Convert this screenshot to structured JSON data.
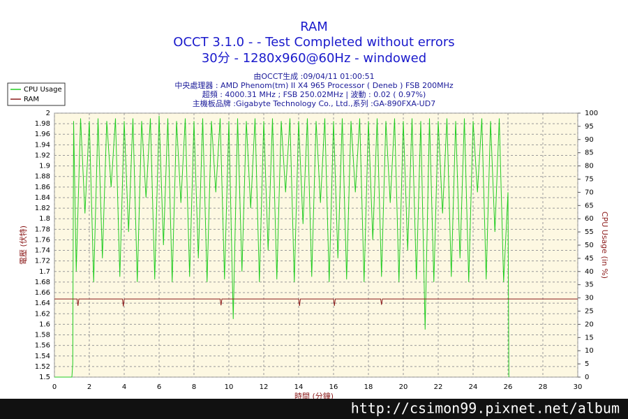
{
  "chart_data": {
    "type": "line",
    "title_lines": [
      "RAM",
      "OCCT 3.1.0 -  - Test Completed without errors",
      "30分 - 1280x960@60Hz - windowed"
    ],
    "info_lines": [
      "由OCCT生成 :09/04/11 01:00:51",
      "中央處理器 : AMD Phenom(tm) II X4 965 Processor ( Deneb ) FSB 200MHz",
      "超頻 : 4000.31 MHz ; FSB 250.02MHz | 波動 : 0.02 ( 0.97%)",
      "主機板品牌 :Gigabyte Technology Co., Ltd.,系列 :GA-890FXA-UD7"
    ],
    "x_label": "時間 (分鐘)",
    "y_label": "電壓 (伏特)",
    "y2_label": "CPU Usage (in %)",
    "watermark": "http://csimon99.pixnet.net/album",
    "xlim": [
      0,
      30
    ],
    "xticks": [
      0,
      2,
      4,
      6,
      8,
      10,
      12,
      14,
      16,
      18,
      20,
      22,
      24,
      26,
      28,
      30
    ],
    "ylim": [
      1.5,
      2
    ],
    "yticks": [
      1.5,
      1.52,
      1.54,
      1.56,
      1.58,
      1.6,
      1.62,
      1.64,
      1.66,
      1.68,
      1.7,
      1.72,
      1.74,
      1.76,
      1.78,
      1.8,
      1.82,
      1.84,
      1.86,
      1.88,
      1.9,
      1.92,
      1.94,
      1.96,
      1.98,
      2
    ],
    "y2lim": [
      0,
      100
    ],
    "y2ticks": [
      0,
      5,
      10,
      15,
      20,
      25,
      30,
      35,
      40,
      45,
      50,
      55,
      60,
      65,
      70,
      75,
      80,
      85,
      90,
      95,
      100
    ],
    "grid": true,
    "legend": "top-left",
    "series": [
      {
        "name": "CPU Usage",
        "color": "#22cc22",
        "axis": "y2",
        "x": [
          0,
          1,
          1.05,
          1.1,
          1.25,
          1.5,
          1.75,
          2,
          2.25,
          2.5,
          2.75,
          3,
          3.25,
          3.5,
          3.75,
          4,
          4.25,
          4.5,
          4.75,
          5,
          5.25,
          5.5,
          5.75,
          6,
          6.25,
          6.5,
          6.75,
          7,
          7.25,
          7.5,
          7.75,
          8,
          8.25,
          8.5,
          8.75,
          9,
          9.25,
          9.5,
          9.75,
          10,
          10.25,
          10.5,
          10.75,
          11,
          11.25,
          11.5,
          11.75,
          12,
          12.25,
          12.5,
          12.75,
          13,
          13.25,
          13.5,
          13.75,
          14,
          14.25,
          14.5,
          14.75,
          15,
          15.25,
          15.5,
          15.75,
          16,
          16.25,
          16.5,
          16.75,
          17,
          17.25,
          17.5,
          17.75,
          18,
          18.25,
          18.5,
          18.75,
          19,
          19.25,
          19.5,
          19.75,
          20,
          20.25,
          20.5,
          20.75,
          21,
          21.25,
          21.5,
          21.75,
          22,
          22.25,
          22.5,
          22.75,
          23,
          23.25,
          23.5,
          23.75,
          24,
          24.25,
          24.5,
          24.75,
          25,
          25.25,
          25.5,
          25.75,
          26,
          26.05
        ],
        "values": [
          0,
          0,
          5,
          97,
          40,
          98,
          62,
          97,
          36,
          98,
          45,
          97,
          72,
          98,
          38,
          97,
          55,
          98,
          36,
          97,
          68,
          98,
          37,
          99,
          50,
          98,
          36,
          97,
          66,
          98,
          38,
          97,
          45,
          98,
          36,
          97,
          70,
          98,
          37,
          97,
          22,
          98,
          40,
          97,
          64,
          98,
          36,
          97,
          48,
          98,
          37,
          97,
          70,
          98,
          36,
          97,
          58,
          98,
          38,
          97,
          66,
          98,
          36,
          97,
          45,
          98,
          37,
          97,
          70,
          98,
          36,
          97,
          52,
          98,
          38,
          97,
          66,
          98,
          36,
          97,
          48,
          98,
          37,
          97,
          18,
          98,
          36,
          97,
          62,
          98,
          38,
          97,
          45,
          98,
          36,
          97,
          70,
          98,
          37,
          97,
          55,
          98,
          36,
          70,
          0
        ]
      },
      {
        "name": "RAM",
        "color": "#8b1a1a",
        "x": [
          0,
          1.3,
          1.35,
          1.4,
          3.9,
          3.95,
          4.0,
          9.5,
          9.55,
          9.6,
          14,
          14.05,
          14.1,
          16,
          16.05,
          16.1,
          18.7,
          18.75,
          18.8,
          30
        ],
        "values": [
          1.648,
          1.648,
          1.635,
          1.648,
          1.648,
          1.634,
          1.648,
          1.648,
          1.636,
          1.648,
          1.648,
          1.635,
          1.648,
          1.648,
          1.635,
          1.648,
          1.648,
          1.637,
          1.648,
          1.648
        ]
      }
    ]
  }
}
